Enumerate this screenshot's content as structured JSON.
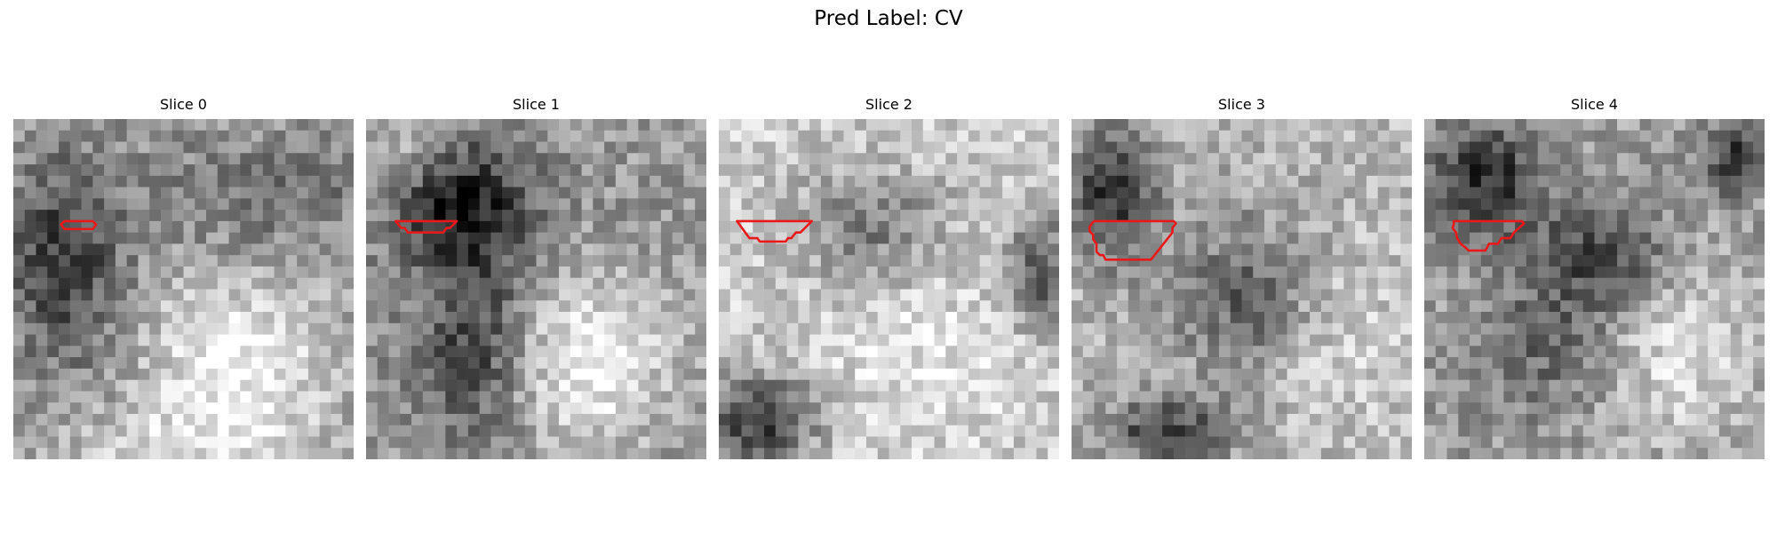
{
  "figure": {
    "suptitle": "Pred Label: CV"
  },
  "slices": [
    {
      "title": "Slice 0",
      "contour_color": "#e8191b",
      "contour_grid_points": [
        [
          4.5,
          9
        ],
        [
          7,
          9
        ],
        [
          7.3,
          9.3
        ],
        [
          7,
          9.7
        ],
        [
          4.5,
          9.7
        ],
        [
          4.2,
          9.3
        ]
      ]
    },
    {
      "title": "Slice 1",
      "contour_color": "#e8191b",
      "contour_grid_points": [
        [
          2.6,
          9
        ],
        [
          8,
          9
        ],
        [
          7.4,
          9.6
        ],
        [
          7.1,
          9.6
        ],
        [
          6.8,
          10
        ],
        [
          3.7,
          10
        ],
        [
          3.4,
          9.6
        ],
        [
          3.1,
          9.6
        ]
      ]
    },
    {
      "title": "Slice 2",
      "contour_color": "#e8191b",
      "contour_grid_points": [
        [
          1.6,
          9
        ],
        [
          8.2,
          9
        ],
        [
          7.2,
          10
        ],
        [
          6.8,
          10
        ],
        [
          6.4,
          10.5
        ],
        [
          6.1,
          10.5
        ],
        [
          5.9,
          10.8
        ],
        [
          3.6,
          10.8
        ],
        [
          3.4,
          10.5
        ],
        [
          2.7,
          10.5
        ]
      ]
    },
    {
      "title": "Slice 3",
      "contour_color": "#e8191b",
      "contour_grid_points": [
        [
          2,
          9
        ],
        [
          9,
          9
        ],
        [
          9.2,
          9.2
        ],
        [
          8.9,
          9.6
        ],
        [
          8.9,
          10
        ],
        [
          7,
          12.4
        ],
        [
          3,
          12.4
        ],
        [
          2.8,
          12
        ],
        [
          2.5,
          12
        ],
        [
          2.2,
          11.7
        ],
        [
          2.2,
          11
        ],
        [
          1.9,
          10.6
        ],
        [
          1.9,
          10.2
        ],
        [
          1.6,
          9.9
        ],
        [
          1.6,
          9.5
        ],
        [
          1.8,
          9.2
        ]
      ]
    },
    {
      "title": "Slice 4",
      "contour_color": "#e8191b",
      "contour_grid_points": [
        [
          2.6,
          9
        ],
        [
          8.6,
          9
        ],
        [
          8.8,
          9.2
        ],
        [
          7.9,
          10
        ],
        [
          7.6,
          10.5
        ],
        [
          6.8,
          10.5
        ],
        [
          6.5,
          11
        ],
        [
          5.7,
          11
        ],
        [
          5.4,
          11.6
        ],
        [
          3.9,
          11.6
        ],
        [
          3.6,
          11.3
        ],
        [
          3.2,
          11
        ],
        [
          2.9,
          10.5
        ],
        [
          2.8,
          10
        ],
        [
          2.5,
          9.6
        ],
        [
          2.6,
          9.3
        ]
      ]
    }
  ]
}
